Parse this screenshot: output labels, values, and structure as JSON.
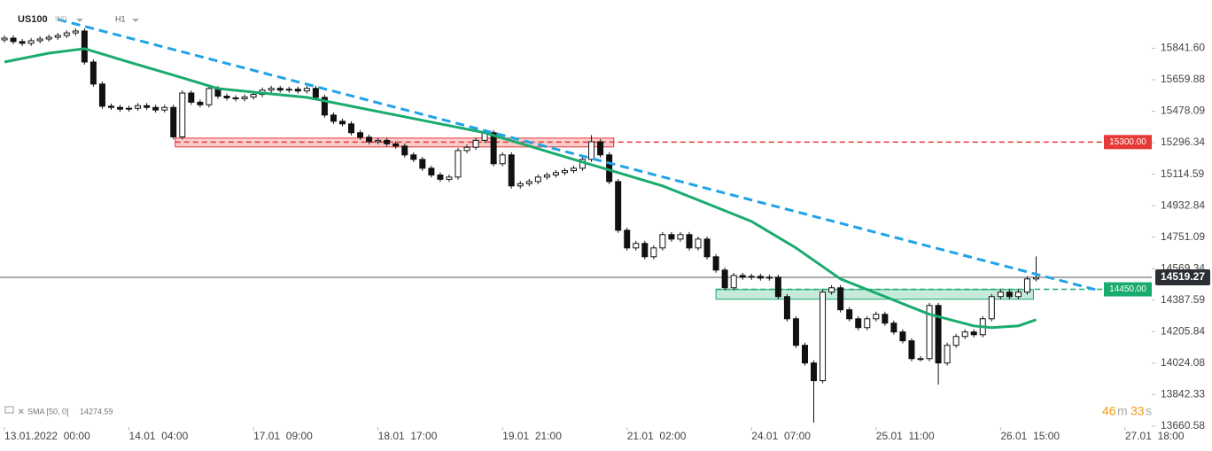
{
  "chart_data": {
    "type": "candlestick",
    "symbol": "US100",
    "market": "IND",
    "interval": "H1",
    "open": [
      15890,
      15900,
      15880,
      15870,
      15885,
      15895,
      15905,
      15915,
      15930,
      15941,
      15762,
      15635,
      15507,
      15500,
      15490,
      15495,
      15510,
      15500,
      15485,
      15500,
      15330,
      15583,
      15530,
      15515,
      15609,
      15565,
      15555,
      15550,
      15560,
      15575,
      15600,
      15610,
      15600,
      15605,
      15595,
      15610,
      15558,
      15456,
      15420,
      15405,
      15354,
      15328,
      15302,
      15310,
      15290,
      15277,
      15226,
      15200,
      15149,
      15110,
      15085,
      15098,
      15251,
      15270,
      15310,
      15354,
      15175,
      15226,
      15047,
      15060,
      15072,
      15098,
      15110,
      15124,
      15135,
      15149,
      15200,
      15302,
      15226,
      15072,
      14791,
      14689,
      14715,
      14638,
      14689,
      14766,
      14740,
      14766,
      14689,
      14740,
      14638,
      14561,
      14459,
      14530,
      14520,
      14525,
      14515,
      14520,
      14408,
      14280,
      14127,
      14025,
      13923,
      14434,
      14459,
      14332,
      14280,
      14229,
      14280,
      14306,
      14255,
      14204,
      14153,
      14050,
      14050,
      14357,
      14025,
      14127,
      14178,
      14204,
      14188,
      14280,
      14408,
      14434,
      14408,
      14434,
      14510
    ],
    "high": [
      15915,
      15915,
      15895,
      15900,
      15910,
      15920,
      15930,
      15945,
      15956,
      15956,
      15777,
      15650,
      15522,
      15515,
      15510,
      15525,
      15525,
      15515,
      15515,
      15515,
      15598,
      15598,
      15545,
      15624,
      15624,
      15580,
      15570,
      15575,
      15590,
      15615,
      15625,
      15625,
      15620,
      15620,
      15625,
      15625,
      15573,
      15471,
      15435,
      15420,
      15369,
      15343,
      15325,
      15325,
      15305,
      15292,
      15241,
      15215,
      15164,
      15125,
      15113,
      15266,
      15285,
      15325,
      15369,
      15369,
      15241,
      15241,
      15075,
      15087,
      15113,
      15125,
      15139,
      15150,
      15164,
      15215,
      15340,
      15317,
      15241,
      15087,
      14806,
      14730,
      14730,
      14704,
      14781,
      14781,
      14781,
      14781,
      14755,
      14755,
      14653,
      14576,
      14545,
      14545,
      14540,
      14540,
      14535,
      14535,
      14423,
      14295,
      14142,
      14040,
      14449,
      14474,
      14474,
      14347,
      14295,
      14295,
      14321,
      14321,
      14270,
      14219,
      14168,
      14065,
      14372,
      14372,
      14142,
      14193,
      14219,
      14219,
      14295,
      14423,
      14449,
      14449,
      14449,
      14525,
      14640
    ],
    "low": [
      15875,
      15865,
      15855,
      15855,
      15870,
      15880,
      15890,
      15900,
      15915,
      15747,
      15620,
      15492,
      15485,
      15475,
      15475,
      15480,
      15485,
      15470,
      15470,
      15315,
      15315,
      15515,
      15500,
      15500,
      15550,
      15540,
      15535,
      15535,
      15545,
      15560,
      15585,
      15585,
      15585,
      15580,
      15580,
      15543,
      15441,
      15405,
      15390,
      15339,
      15313,
      15287,
      15287,
      15275,
      15262,
      15211,
      15185,
      15134,
      15095,
      15070,
      15070,
      15083,
      15236,
      15255,
      15295,
      15160,
      15160,
      15032,
      15032,
      15045,
      15057,
      15083,
      15095,
      15109,
      15120,
      15134,
      15185,
      15211,
      15057,
      14776,
      14674,
      14674,
      14623,
      14623,
      14674,
      14725,
      14725,
      14674,
      14674,
      14623,
      14546,
      14444,
      14444,
      14505,
      14505,
      14500,
      14500,
      14393,
      14265,
      14112,
      14010,
      13680,
      13908,
      14419,
      14317,
      14265,
      14214,
      14214,
      14265,
      14240,
      14189,
      14138,
      14035,
      14035,
      14035,
      13900,
      14010,
      14112,
      14163,
      14173,
      14173,
      14265,
      14393,
      14393,
      14393,
      14419,
      14495
    ],
    "close": [
      15900,
      15880,
      15870,
      15885,
      15895,
      15905,
      15915,
      15930,
      15941,
      15762,
      15635,
      15507,
      15500,
      15490,
      15495,
      15510,
      15500,
      15485,
      15500,
      15330,
      15583,
      15530,
      15515,
      15609,
      15565,
      15555,
      15550,
      15560,
      15575,
      15600,
      15610,
      15600,
      15605,
      15595,
      15610,
      15558,
      15456,
      15420,
      15405,
      15354,
      15328,
      15302,
      15310,
      15290,
      15277,
      15226,
      15200,
      15149,
      15110,
      15085,
      15098,
      15251,
      15270,
      15310,
      15354,
      15175,
      15226,
      15047,
      15060,
      15072,
      15098,
      15110,
      15124,
      15135,
      15149,
      15200,
      15302,
      15226,
      15072,
      14791,
      14689,
      14715,
      14638,
      14689,
      14766,
      14740,
      14766,
      14689,
      14740,
      14638,
      14561,
      14459,
      14530,
      14520,
      14525,
      14515,
      14520,
      14408,
      14280,
      14127,
      14025,
      13923,
      14434,
      14459,
      14332,
      14280,
      14229,
      14280,
      14306,
      14255,
      14204,
      14153,
      14050,
      14050,
      14357,
      14025,
      14127,
      14178,
      14204,
      14188,
      14280,
      14408,
      14434,
      14408,
      14434,
      14510,
      14519.27
    ],
    "sma": {
      "name": "SMA [50, 0]",
      "color": "#1aab6e",
      "x": [
        0,
        5,
        9,
        14,
        19,
        24,
        29,
        34,
        39,
        44,
        49,
        54,
        59,
        64,
        69,
        74,
        79,
        84,
        89,
        94,
        99,
        104,
        109,
        111,
        114,
        116
      ],
      "values": [
        15762,
        15813,
        15839,
        15762,
        15686,
        15609,
        15583,
        15558,
        15507,
        15456,
        15405,
        15354,
        15277,
        15200,
        15124,
        15047,
        14945,
        14842,
        14689,
        14510,
        14408,
        14306,
        14239,
        14229,
        14239,
        14274.59
      ]
    },
    "trendline": {
      "color": "#1fa3e8",
      "x": [
        6,
        123
      ],
      "values": [
        16008,
        14444
      ]
    },
    "levels": [
      {
        "value": 15300,
        "label": "15300.00",
        "color": "#e53935"
      },
      {
        "value": 14450,
        "label": "14450.00",
        "color": "#1aab6e"
      }
    ],
    "zones": [
      {
        "x": [
          19.2,
          68.5
        ],
        "range": [
          15272,
          15323
        ],
        "color": "#e53935"
      },
      {
        "x": [
          80,
          115.7
        ],
        "range": [
          14393,
          14449
        ],
        "color": "#1aab6e"
      }
    ],
    "last_price": 14519.27,
    "xlim": [
      -0.5,
      129
    ],
    "xticks": [
      {
        "value": 0,
        "label": "13.01.2022  00:00"
      },
      {
        "value": 14,
        "label": "14.01  04:00"
      },
      {
        "value": 28,
        "label": "17.01  09:00"
      },
      {
        "value": 42,
        "label": "18.01  17:00"
      },
      {
        "value": 56,
        "label": "19.01  21:00"
      },
      {
        "value": 70,
        "label": "21.01  02:00"
      },
      {
        "value": 84,
        "label": "24.01  07:00"
      },
      {
        "value": 98,
        "label": "25.01  11:00"
      },
      {
        "value": 112,
        "label": "26.01  15:00"
      },
      {
        "value": 126,
        "label": "27.01  18:00"
      }
    ],
    "ylim": [
      13655,
      16120
    ],
    "yticks": [
      {
        "value": 15841.6,
        "label": "15841.60"
      },
      15659.88,
      15478.09,
      15296.34,
      15114.59,
      14932.84,
      14751.09,
      14569.34,
      14387.59,
      14205.84,
      14024.08,
      13842.33,
      13660.58
    ],
    "countdown": [
      "46",
      "m",
      "33",
      "s"
    ]
  }
}
